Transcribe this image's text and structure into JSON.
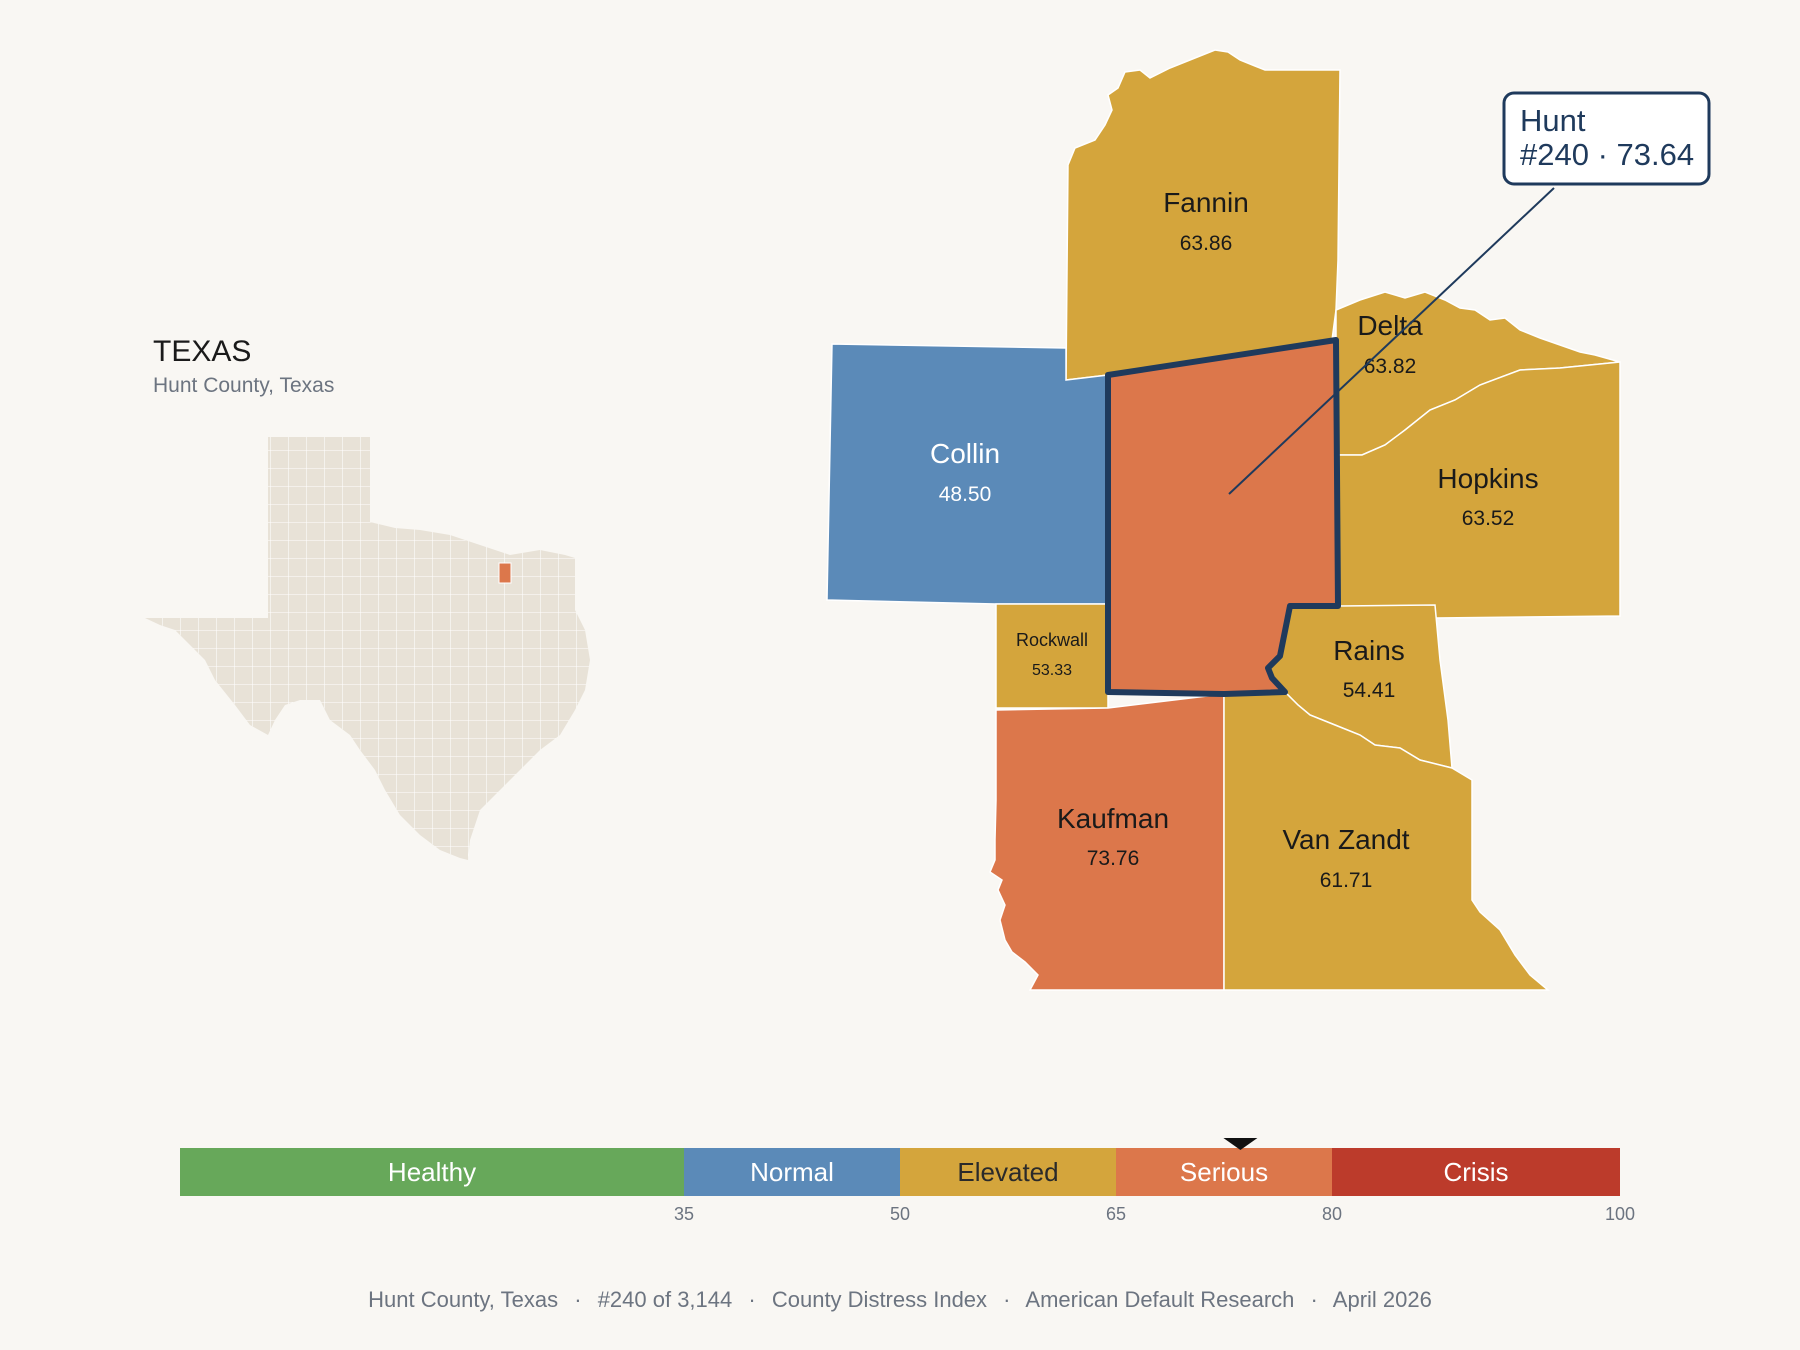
{
  "inset": {
    "state_title": "TEXAS",
    "subtitle": "Hunt County, Texas"
  },
  "counties": {
    "fannin": {
      "name": "Fannin",
      "value": "63.86",
      "category": "Elevated"
    },
    "delta": {
      "name": "Delta",
      "value": "63.82",
      "category": "Elevated"
    },
    "collin": {
      "name": "Collin",
      "value": "48.50",
      "category": "Normal"
    },
    "hopkins": {
      "name": "Hopkins",
      "value": "63.52",
      "category": "Elevated"
    },
    "rockwall": {
      "name": "Rockwall",
      "value": "53.33",
      "category": "Elevated"
    },
    "rains": {
      "name": "Rains",
      "value": "54.41",
      "category": "Elevated"
    },
    "kaufman": {
      "name": "Kaufman",
      "value": "73.76",
      "category": "Serious"
    },
    "vanzandt": {
      "name": "Van Zandt",
      "value": "61.71",
      "category": "Elevated"
    },
    "hunt": {
      "name": "Hunt",
      "value": "73.64",
      "category": "Serious"
    }
  },
  "callout": {
    "line1": "Hunt",
    "line2": "#240 · 73.64"
  },
  "legend": {
    "segments": [
      {
        "label": "Healthy",
        "from": 0,
        "to": 35,
        "color": "#67a85a"
      },
      {
        "label": "Normal",
        "from": 35,
        "to": 50,
        "color": "#5b8ab8"
      },
      {
        "label": "Elevated",
        "from": 50,
        "to": 65,
        "color": "#d4a53c"
      },
      {
        "label": "Serious",
        "from": 65,
        "to": 80,
        "color": "#dc774b"
      },
      {
        "label": "Crisis",
        "from": 80,
        "to": 100,
        "color": "#bc3b2b"
      }
    ],
    "ticks": [
      "35",
      "50",
      "65",
      "80",
      "100"
    ],
    "marker_value": 73.64
  },
  "colors": {
    "elevated": "#d4a53c",
    "normal": "#5b8ab8",
    "serious": "#dc774b",
    "highlight_outline": "#1f3a5c",
    "inset_fill": "#e8e2d7"
  },
  "footer": {
    "county": "Hunt County, Texas",
    "rank": "#240 of 3,144",
    "index": "County Distress Index",
    "publisher": "American Default Research",
    "date": "April 2026",
    "separator": "·"
  }
}
